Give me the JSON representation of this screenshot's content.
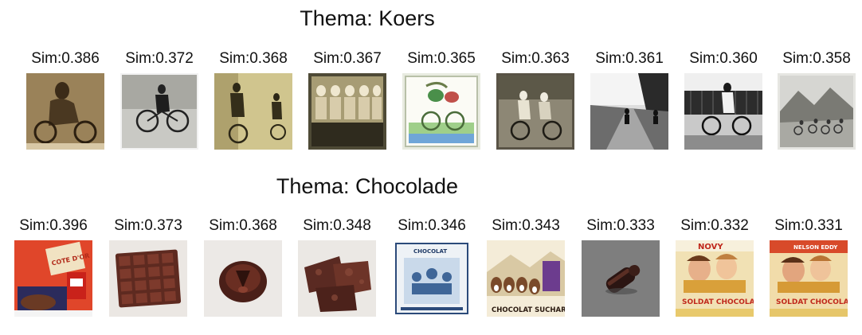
{
  "sections": [
    {
      "title": "Thema: Koers",
      "items": [
        {
          "sim": "Sim:0.386",
          "image": "cyclist-portrait-sepia"
        },
        {
          "sim": "Sim:0.372",
          "image": "cyclist-on-bicycle-photo"
        },
        {
          "sim": "Sim:0.368",
          "image": "cyclists-group-street-photo"
        },
        {
          "sim": "Sim:0.367",
          "image": "women-with-bicycles-photo"
        },
        {
          "sim": "Sim:0.365",
          "image": "illustrated-bicycle-card"
        },
        {
          "sim": "Sim:0.363",
          "image": "two-cyclists-photo"
        },
        {
          "sim": "Sim:0.361",
          "image": "road-cyclists-photo"
        },
        {
          "sim": "Sim:0.360",
          "image": "cyclist-by-fence-photo"
        },
        {
          "sim": "Sim:0.358",
          "image": "mountain-cyclists-photo"
        }
      ]
    },
    {
      "title": "Thema: Chocolade",
      "items": [
        {
          "sim": "Sim:0.396",
          "image": "chocolate-packaging-red",
          "label": "COTE D'OR"
        },
        {
          "sim": "Sim:0.373",
          "image": "chocolate-bar"
        },
        {
          "sim": "Sim:0.368",
          "image": "chocolate-bowl-object"
        },
        {
          "sim": "Sim:0.348",
          "image": "chocolate-pieces"
        },
        {
          "sim": "Sim:0.346",
          "image": "chocolate-wrapper-blue",
          "label": "CHOCOLAT"
        },
        {
          "sim": "Sim:0.343",
          "image": "chocolat-suchard-ad",
          "label": "CHOCOLAT SUCHARD"
        },
        {
          "sim": "Sim:0.333",
          "image": "chocolate-cylinder-object"
        },
        {
          "sim": "Sim:0.332",
          "image": "movie-poster-soldat-chocolat",
          "label_top": "NOVY",
          "label_bottom": "SOLDAT CHOCOLAT"
        },
        {
          "sim": "Sim:0.331",
          "image": "movie-poster-soldat-chocolat",
          "label_top": "NELSON EDDY",
          "label_bottom": "SOLDAT CHOCOLAT"
        }
      ]
    }
  ]
}
